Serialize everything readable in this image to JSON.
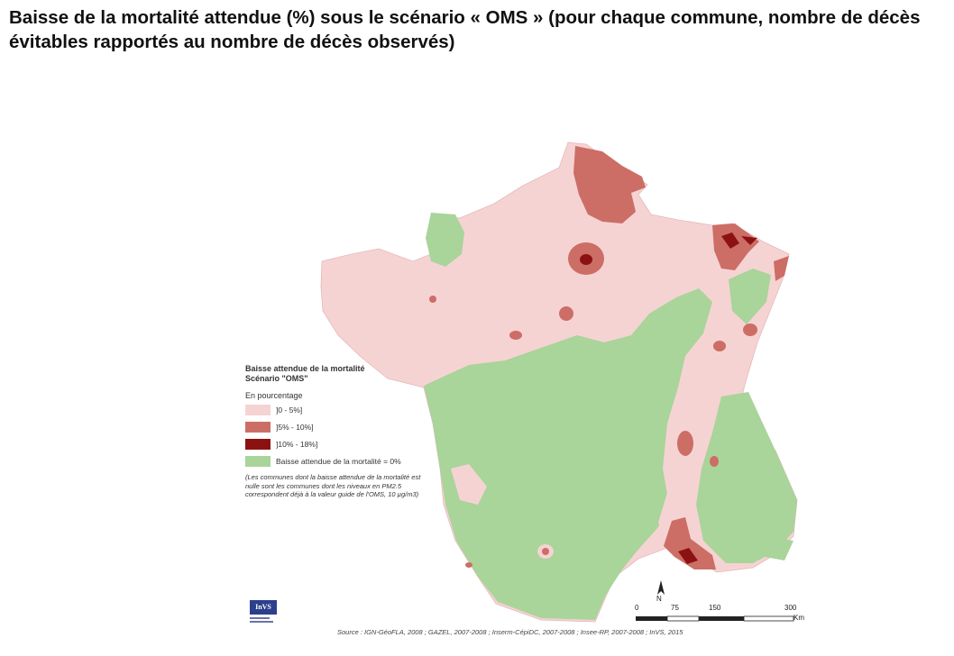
{
  "title": "Baisse de la mortalité attendue (%) sous le scénario « OMS » (pour chaque commune, nombre de décès évitables rapportés au nombre de décès observés)",
  "legend": {
    "title_line1": "Baisse attendue de la mortalité",
    "title_line2": "Scénario \"OMS\"",
    "subtitle": "En pourcentage",
    "items": [
      {
        "label": "]0 - 5%]",
        "color": "#f6d3d3"
      },
      {
        "label": "]5% - 10%]",
        "color": "#cc6e66"
      },
      {
        "label": "]10% - 18%]",
        "color": "#8c1212"
      },
      {
        "label": "Baisse attendue de la mortalité = 0%",
        "color": "#a9d49a"
      }
    ],
    "note": "(Les communes dont la baisse attendue de la mortalité est nulle sont les communes dont les niveaux en PM2.5 correspondent déjà à la valeur guide de l'OMS, 10 µg/m3)"
  },
  "scale": {
    "ticks": [
      "0",
      "75",
      "150",
      "300"
    ],
    "unit": "Km",
    "north": "N"
  },
  "source": "Source : IGN-GéoFLA, 2008 ; GAZEL, 2007-2008 ; Inserm-CépiDC, 2007-2008 ; Insee-RP, 2007-2008 ; InVS, 2015",
  "logo": {
    "text": "InVS"
  },
  "colors": {
    "low": "#f6d3d3",
    "mid": "#cc6e66",
    "high": "#8c1212",
    "zero": "#a9d49a"
  }
}
